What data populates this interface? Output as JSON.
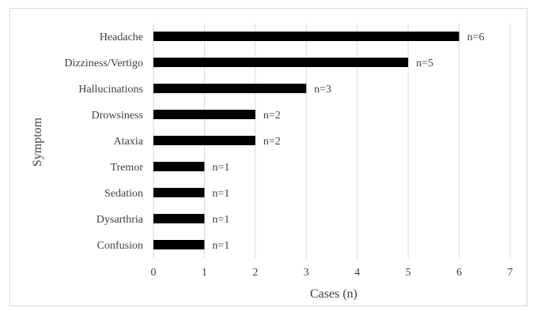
{
  "chart_data": {
    "type": "bar",
    "orientation": "horizontal",
    "categories": [
      "Headache",
      "Dizziness/Vertigo",
      "Hallucinations",
      "Drowsiness",
      "Ataxia",
      "Tremor",
      "Sedation",
      "Dysarthria",
      "Confusion"
    ],
    "values": [
      6,
      5,
      3,
      2,
      2,
      1,
      1,
      1,
      1
    ],
    "data_labels": [
      "n=6",
      "n=5",
      "n=3",
      "n=2",
      "n=2",
      "n=1",
      "n=1",
      "n=1",
      "n=1"
    ],
    "title": "",
    "xlabel": "Cases (n)",
    "ylabel": "Symptom",
    "xlim": [
      0,
      7
    ],
    "xticks": [
      "0",
      "1",
      "2",
      "3",
      "4",
      "5",
      "6",
      "7"
    ],
    "grid": "vertical",
    "legend": "none",
    "bar_color": "#000000",
    "grid_color": "#d9d9d9"
  }
}
